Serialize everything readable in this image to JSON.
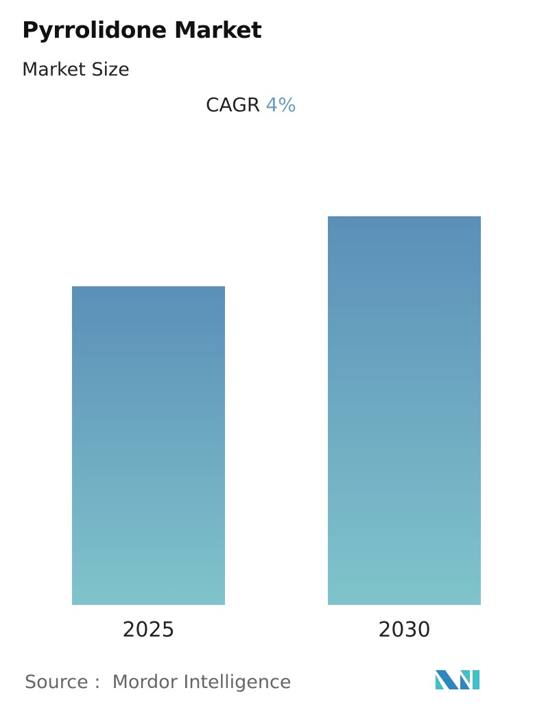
{
  "chart_data": {
    "type": "bar",
    "title": "Pyrrolidone Market",
    "subtitle": "Market Size",
    "categories": [
      "2025",
      "2030"
    ],
    "values": [
      82,
      100
    ],
    "xlabel": "",
    "ylabel": "",
    "grid": false,
    "annotation": {
      "label": "CAGR",
      "value": "4%"
    },
    "colors": {
      "bar_top": "#5b8fb8",
      "bar_bottom": "#80c4cb",
      "cagr_value": "#6a9cc4"
    }
  },
  "source": {
    "label": "Source :",
    "name": "Mordor Intelligence"
  },
  "logo": {
    "text": "MI",
    "colors": [
      "#2e86c1",
      "#3fc1c9"
    ]
  }
}
